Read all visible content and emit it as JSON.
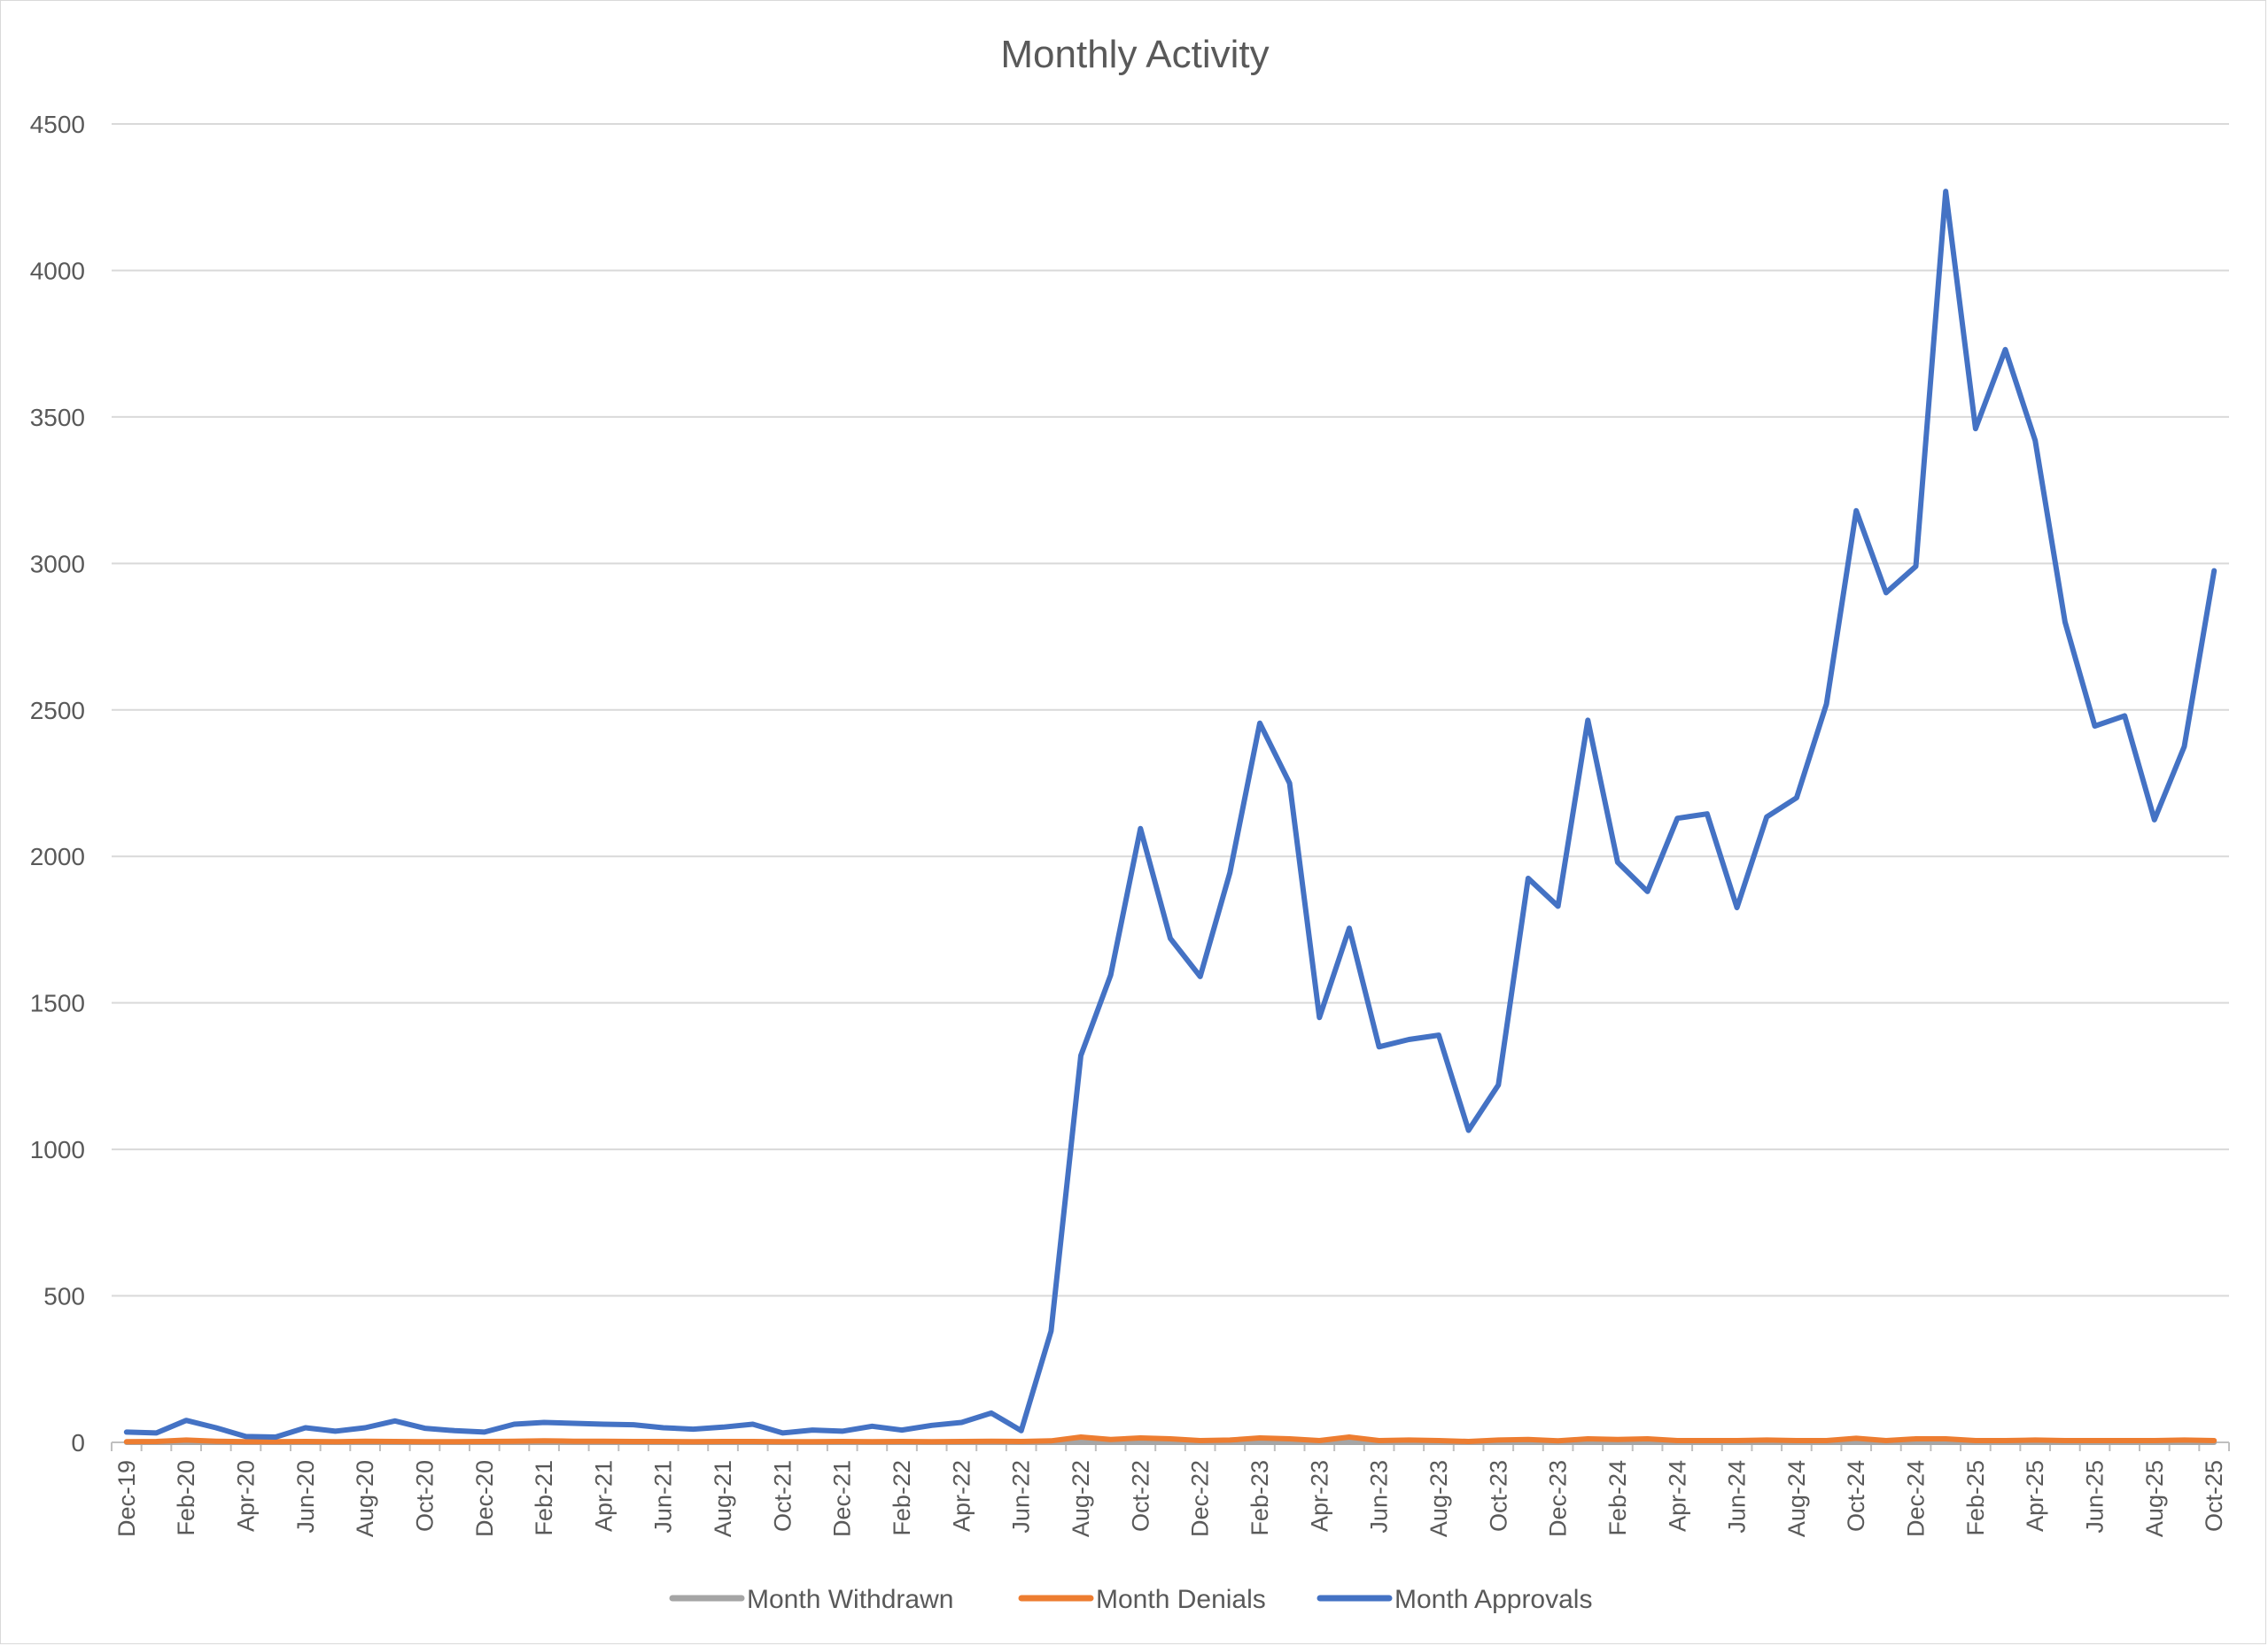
{
  "chart_data": {
    "type": "line",
    "title": "Monthly Activity",
    "xlabel": "",
    "ylabel": "",
    "ylim": [
      0,
      4500
    ],
    "yticks": [
      0,
      500,
      1000,
      1500,
      2000,
      2500,
      3000,
      3500,
      4000,
      4500
    ],
    "grid": "horizontal",
    "legend": "bottom",
    "tick_labels": [
      "Dec-19",
      "Feb-20",
      "Apr-20",
      "Jun-20",
      "Aug-20",
      "Oct-20",
      "Dec-20",
      "Feb-21",
      "Apr-21",
      "Jun-21",
      "Aug-21",
      "Oct-21",
      "Dec-21",
      "Feb-22",
      "Apr-22",
      "Jun-22",
      "Aug-22",
      "Oct-22",
      "Dec-22",
      "Feb-23",
      "Apr-23",
      "Jun-23",
      "Aug-23",
      "Oct-23",
      "Dec-23",
      "Feb-24",
      "Apr-24",
      "Jun-24",
      "Aug-24",
      "Oct-24",
      "Dec-24",
      "Feb-25",
      "Apr-25",
      "Jun-25",
      "Aug-25",
      "Oct-25"
    ],
    "x": [
      "Dec-19",
      "Jan-20",
      "Feb-20",
      "Mar-20",
      "Apr-20",
      "May-20",
      "Jun-20",
      "Jul-20",
      "Aug-20",
      "Sep-20",
      "Oct-20",
      "Nov-20",
      "Dec-20",
      "Jan-21",
      "Feb-21",
      "Mar-21",
      "Apr-21",
      "May-21",
      "Jun-21",
      "Jul-21",
      "Aug-21",
      "Sep-21",
      "Oct-21",
      "Nov-21",
      "Dec-21",
      "Jan-22",
      "Feb-22",
      "Mar-22",
      "Apr-22",
      "May-22",
      "Jun-22",
      "Jul-22",
      "Aug-22",
      "Sep-22",
      "Oct-22",
      "Nov-22",
      "Dec-22",
      "Jan-23",
      "Feb-23",
      "Mar-23",
      "Apr-23",
      "May-23",
      "Jun-23",
      "Jul-23",
      "Aug-23",
      "Sep-23",
      "Oct-23",
      "Nov-23",
      "Dec-23",
      "Jan-24",
      "Feb-24",
      "Mar-24",
      "Apr-24",
      "May-24",
      "Jun-24",
      "Jul-24",
      "Aug-24",
      "Sep-24",
      "Oct-24",
      "Nov-24",
      "Dec-24",
      "Jan-25",
      "Feb-25",
      "Mar-25",
      "Apr-25",
      "May-25",
      "Jun-25",
      "Jul-25",
      "Aug-25",
      "Sep-25",
      "Oct-25"
    ],
    "series": [
      {
        "name": "Month Withdrawn",
        "color": "#a5a5a5",
        "values": [
          0,
          0,
          0,
          0,
          0,
          0,
          0,
          0,
          0,
          0,
          0,
          0,
          0,
          0,
          0,
          0,
          0,
          0,
          0,
          0,
          0,
          0,
          0,
          0,
          0,
          0,
          0,
          0,
          0,
          0,
          0,
          0,
          0,
          0,
          0,
          0,
          0,
          0,
          0,
          0,
          0,
          0,
          0,
          0,
          0,
          0,
          0,
          0,
          0,
          0,
          0,
          0,
          0,
          0,
          0,
          0,
          0,
          0,
          0,
          0,
          0,
          0,
          0,
          0,
          0,
          0,
          0,
          0,
          0,
          0,
          0
        ]
      },
      {
        "name": "Month Denials",
        "color": "#ed7d31",
        "values": [
          2,
          3,
          8,
          4,
          2,
          2,
          3,
          2,
          4,
          3,
          2,
          2,
          3,
          4,
          5,
          4,
          4,
          3,
          3,
          2,
          3,
          3,
          2,
          2,
          3,
          2,
          3,
          2,
          3,
          4,
          3,
          5,
          18,
          10,
          15,
          12,
          6,
          8,
          15,
          12,
          6,
          18,
          6,
          8,
          6,
          3,
          8,
          10,
          5,
          12,
          10,
          12,
          6,
          6,
          6,
          8,
          6,
          6,
          14,
          6,
          12,
          12,
          6,
          6,
          8,
          6,
          6,
          6,
          6,
          8,
          6
        ]
      },
      {
        "name": "Month Approvals",
        "color": "#4472c4",
        "values": [
          35,
          32,
          75,
          50,
          20,
          18,
          50,
          38,
          50,
          73,
          48,
          40,
          35,
          62,
          68,
          65,
          62,
          60,
          50,
          45,
          52,
          62,
          32,
          42,
          38,
          55,
          42,
          58,
          68,
          100,
          40,
          380,
          1320,
          1595,
          2095,
          1720,
          1590,
          1945,
          2455,
          2250,
          1450,
          1755,
          1350,
          1375,
          1390,
          1065,
          1220,
          1925,
          1830,
          2465,
          1980,
          1880,
          2130,
          2145,
          1825,
          2135,
          2200,
          2520,
          3180,
          2900,
          2990,
          4270,
          3460,
          3730,
          3420,
          2800,
          2445,
          2480,
          2125,
          2375,
          2975
        ]
      }
    ]
  }
}
